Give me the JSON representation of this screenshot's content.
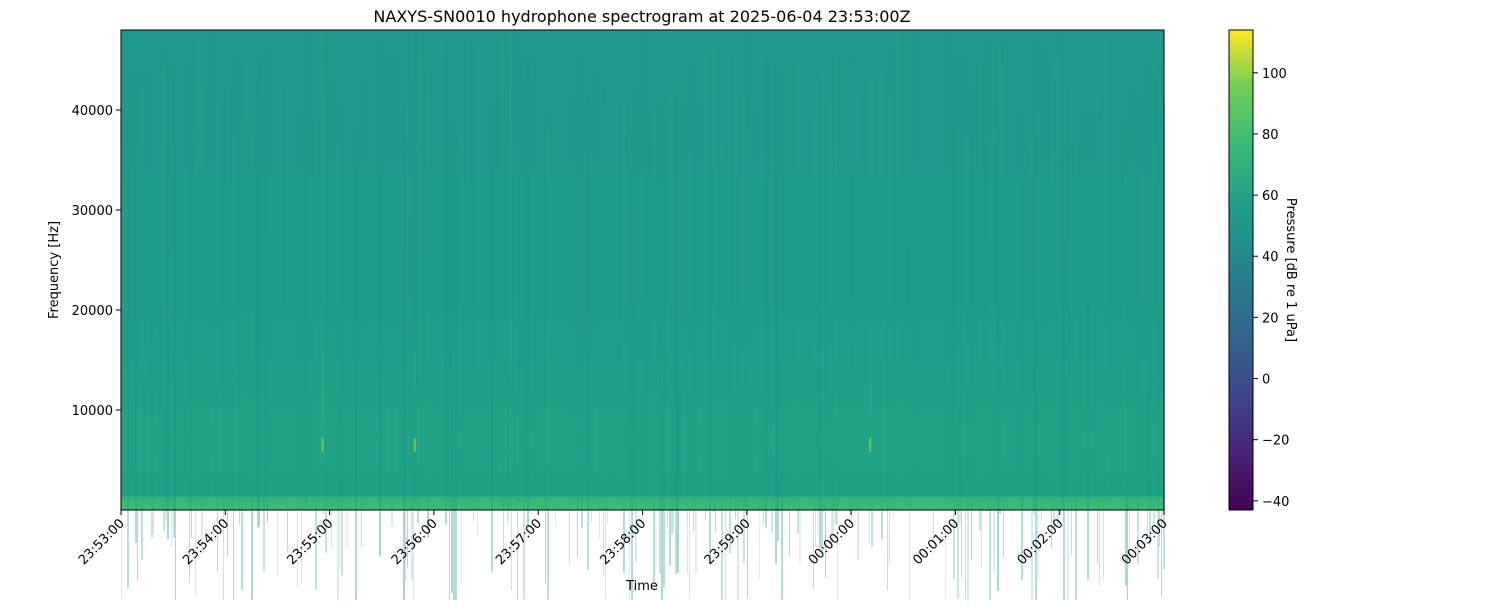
{
  "chart_data": {
    "type": "heatmap",
    "title": "NAXYS-SN0010 hydrophone spectrogram at 2025-06-04 23:53:00Z",
    "xlabel": "Time",
    "ylabel": "Frequency [Hz]",
    "x_ticks": [
      "23:53:00",
      "23:54:00",
      "23:55:00",
      "23:56:00",
      "23:57:00",
      "23:58:00",
      "23:59:00",
      "00:00:00",
      "00:01:00",
      "00:02:00",
      "00:03:00"
    ],
    "y_ticks": [
      10000,
      20000,
      30000,
      40000
    ],
    "ylim": [
      0,
      48000
    ],
    "colorbar": {
      "label": "Pressure [dB re 1 uPa]",
      "colormap": "viridis",
      "range": [
        -43,
        114
      ],
      "ticks": [
        -40,
        -20,
        0,
        20,
        40,
        60,
        80,
        100
      ]
    },
    "levels": {
      "upper_band_db": 48,
      "mid_band_db": 52,
      "low_frequency_band_db": 62
    },
    "transients": [
      {
        "time": "23:54:56",
        "freq_hz": 6500
      },
      {
        "time": "23:55:49",
        "freq_hz": 6500
      },
      {
        "time": "00:00:11",
        "freq_hz": 6500
      }
    ],
    "grid": false
  }
}
